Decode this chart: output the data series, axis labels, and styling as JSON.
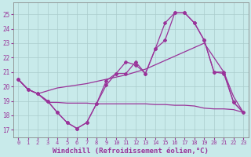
{
  "background_color": "#c8eaea",
  "grid_color": "#aacccc",
  "line_color": "#993399",
  "xlabel": "Windchill (Refroidissement éolien,°C)",
  "yticks": [
    17,
    18,
    19,
    20,
    21,
    22,
    23,
    24,
    25
  ],
  "ylim": [
    16.5,
    25.8
  ],
  "xlim": [
    -0.5,
    23.5
  ],
  "figsize": [
    3.2,
    2.0
  ],
  "dpi": 100,
  "line1_x": [
    0,
    1,
    2,
    3,
    4,
    5,
    6,
    7,
    8,
    9,
    10,
    11,
    12,
    13,
    14,
    15,
    16,
    17,
    18,
    19,
    20,
    21,
    22,
    23
  ],
  "line1_y": [
    20.5,
    19.8,
    19.5,
    19.0,
    18.2,
    17.5,
    17.1,
    17.5,
    18.8,
    20.1,
    20.9,
    20.9,
    21.7,
    20.9,
    22.6,
    23.2,
    25.1,
    25.1,
    24.4,
    23.2,
    21.0,
    20.9,
    18.9,
    18.2
  ],
  "line2_x": [
    0,
    1,
    2,
    3,
    4,
    5,
    6,
    7,
    8,
    9,
    10,
    11,
    12,
    13,
    14,
    15,
    16,
    17,
    18,
    19,
    20,
    21,
    22,
    23
  ],
  "line2_y": [
    20.5,
    19.8,
    19.5,
    19.7,
    19.9,
    20.0,
    20.1,
    20.2,
    20.35,
    20.5,
    20.65,
    20.8,
    21.0,
    21.2,
    21.5,
    21.8,
    22.1,
    22.4,
    22.7,
    23.0,
    22.0,
    21.0,
    19.3,
    18.2
  ],
  "line3_x": [
    0,
    1,
    2,
    3,
    4,
    5,
    6,
    7,
    8,
    9,
    10,
    11,
    12,
    13,
    14,
    15,
    16,
    17,
    18,
    19,
    20,
    21,
    22,
    23
  ],
  "line3_y": [
    20.5,
    19.8,
    19.5,
    18.9,
    18.9,
    18.85,
    18.85,
    18.85,
    18.8,
    18.8,
    18.8,
    18.8,
    18.8,
    18.8,
    18.75,
    18.75,
    18.7,
    18.7,
    18.65,
    18.5,
    18.45,
    18.45,
    18.4,
    18.2
  ],
  "line4_x": [
    0,
    1,
    2,
    3,
    4,
    5,
    6,
    7,
    8,
    9,
    10,
    11,
    12,
    13,
    14,
    15,
    16,
    17,
    18,
    19,
    20,
    21,
    22,
    23
  ],
  "line4_y": [
    20.5,
    19.8,
    19.5,
    19.0,
    18.2,
    17.5,
    17.1,
    17.5,
    18.8,
    20.4,
    20.9,
    21.7,
    21.5,
    20.9,
    22.6,
    24.4,
    25.1,
    25.1,
    24.4,
    23.2,
    21.0,
    21.0,
    18.9,
    18.2
  ]
}
